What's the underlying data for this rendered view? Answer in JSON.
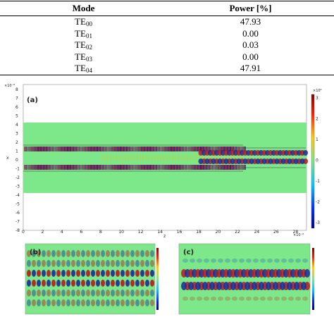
{
  "table": {
    "headers": {
      "mode": "Mode",
      "power": "Power [%]"
    },
    "rows": [
      {
        "mode_base": "TE",
        "mode_sub": "00",
        "power": "47.93"
      },
      {
        "mode_base": "TE",
        "mode_sub": "01",
        "power": "0.00"
      },
      {
        "mode_base": "TE",
        "mode_sub": "02",
        "power": "0.03"
      },
      {
        "mode_base": "TE",
        "mode_sub": "03",
        "power": "0.00"
      },
      {
        "mode_base": "TE",
        "mode_sub": "04",
        "power": "47.91"
      }
    ]
  },
  "figure": {
    "panel_a": {
      "label": "(a)",
      "x_exponent": "×10⁻⁶",
      "y_exponent": "×10⁻⁶",
      "cbar_exponent": "×10⁴",
      "xlabel": "z",
      "ylabel": "x",
      "x_ticks": [
        "0",
        "2",
        "4",
        "6",
        "8",
        "10",
        "12",
        "14",
        "16",
        "18",
        "20",
        "22",
        "24",
        "26",
        "28"
      ],
      "y_ticks": [
        "8",
        "7",
        "6",
        "5",
        "4",
        "3",
        "2",
        "1",
        "0",
        "-1",
        "-2",
        "-3",
        "-4",
        "-5",
        "-6",
        "-7",
        "-8"
      ],
      "cbar_ticks": [
        "3",
        "2",
        "1",
        "0",
        "-1",
        "-2",
        "-3"
      ]
    },
    "panel_b": {
      "label": "(b)"
    },
    "panel_c": {
      "label": "(c)"
    },
    "colors": {
      "background_field": "#7de88a",
      "core_high": "#b01010",
      "core_low": "#1a2a9a"
    }
  }
}
